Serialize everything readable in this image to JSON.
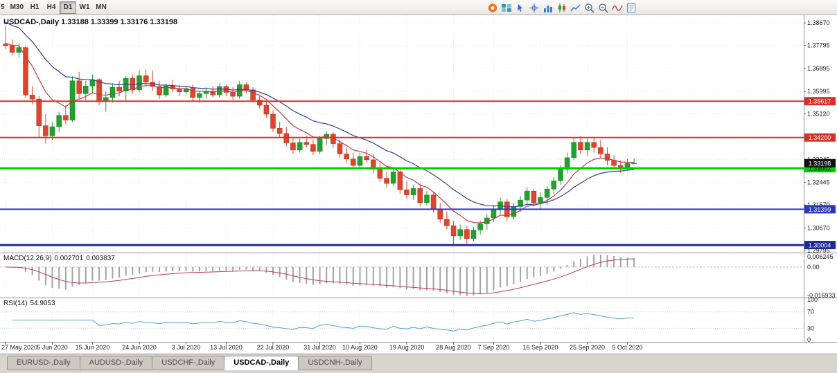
{
  "toolbar": {
    "timeframes": [
      {
        "label": "5",
        "active": false
      },
      {
        "label": "M30",
        "active": false
      },
      {
        "label": "H1",
        "active": false
      },
      {
        "label": "H4",
        "active": false
      },
      {
        "label": "D1",
        "active": true
      },
      {
        "label": "W1",
        "active": false
      },
      {
        "label": "MN",
        "active": false
      }
    ],
    "icons": [
      "app-logo-icon",
      "tile-windows-icon",
      "cursor-icon",
      "crosshair-icon",
      "bar-chart-icon",
      "candlestick-chart-icon",
      "line-chart-icon",
      "zoom-in-icon",
      "zoom-out-icon",
      "indicators-icon",
      "templates-icon"
    ]
  },
  "chart": {
    "title": "USDCAD-,Daily",
    "ohlc": {
      "open": "1.33188",
      "high": "1.33399",
      "low": "1.33176",
      "close": "1.33198"
    }
  },
  "chart_data": {
    "type": "candlestick",
    "symbol": "USDCAD",
    "timeframe": "Daily",
    "ylim": [
      1.2971,
      1.3897
    ],
    "y_axis_labels": [
      "1.38670",
      "1.37795",
      "1.36895",
      "1.35995",
      "1.35120",
      "1.34220",
      "1.33345",
      "1.32445",
      "1.31570",
      "1.30670",
      "1.29795"
    ],
    "x_labels": [
      {
        "index": 0,
        "label": "27 May 2020"
      },
      {
        "index": 7,
        "label": "5 Jun 2020"
      },
      {
        "index": 13,
        "label": "15 Jun 2020"
      },
      {
        "index": 20,
        "label": "24 Jun 2020"
      },
      {
        "index": 27,
        "label": "3 Jul 2020"
      },
      {
        "index": 33,
        "label": "13 Jul 2020"
      },
      {
        "index": 40,
        "label": "22 Jul 2020"
      },
      {
        "index": 47,
        "label": "31 Jul 2020"
      },
      {
        "index": 53,
        "label": "10 Aug 2020"
      },
      {
        "index": 60,
        "label": "19 Aug 2020"
      },
      {
        "index": 67,
        "label": "28 Aug 2020"
      },
      {
        "index": 73,
        "label": "7 Sep 2020"
      },
      {
        "index": 80,
        "label": "16 Sep 2020"
      },
      {
        "index": 87,
        "label": "25 Sep 2020"
      },
      {
        "index": 93,
        "label": "5 Oct 2020"
      }
    ],
    "candles": [
      [
        1.3785,
        1.3857,
        1.3765,
        1.3778
      ],
      [
        1.3778,
        1.3802,
        1.3741,
        1.3752
      ],
      [
        1.3752,
        1.3786,
        1.3731,
        1.3771
      ],
      [
        1.3771,
        1.3776,
        1.3574,
        1.3586
      ],
      [
        1.3586,
        1.3621,
        1.3549,
        1.357
      ],
      [
        1.357,
        1.3581,
        1.3421,
        1.3466
      ],
      [
        1.3466,
        1.3511,
        1.3396,
        1.3426
      ],
      [
        1.3426,
        1.3481,
        1.3411,
        1.3462
      ],
      [
        1.3462,
        1.3521,
        1.3441,
        1.3506
      ],
      [
        1.3506,
        1.3546,
        1.3471,
        1.3488
      ],
      [
        1.3488,
        1.3659,
        1.3481,
        1.3641
      ],
      [
        1.3641,
        1.3676,
        1.3571,
        1.3591
      ],
      [
        1.3591,
        1.3641,
        1.3561,
        1.3621
      ],
      [
        1.3621,
        1.3666,
        1.3591,
        1.3646
      ],
      [
        1.3646,
        1.3651,
        1.3546,
        1.3561
      ],
      [
        1.3561,
        1.3601,
        1.3521,
        1.3576
      ],
      [
        1.3576,
        1.3631,
        1.3556,
        1.3616
      ],
      [
        1.3616,
        1.3641,
        1.3581,
        1.3601
      ],
      [
        1.3601,
        1.3661,
        1.3561,
        1.3651
      ],
      [
        1.3651,
        1.3666,
        1.3591,
        1.3606
      ],
      [
        1.3606,
        1.3681,
        1.3596,
        1.3661
      ],
      [
        1.3661,
        1.3686,
        1.3621,
        1.3636
      ],
      [
        1.3636,
        1.3681,
        1.3601,
        1.3619
      ],
      [
        1.3619,
        1.3641,
        1.3571,
        1.3586
      ],
      [
        1.3586,
        1.3631,
        1.3576,
        1.3621
      ],
      [
        1.3621,
        1.3646,
        1.3596,
        1.3609
      ],
      [
        1.3609,
        1.3626,
        1.3581,
        1.3598
      ],
      [
        1.3598,
        1.3621,
        1.3586,
        1.3611
      ],
      [
        1.3611,
        1.3626,
        1.3561,
        1.3576
      ],
      [
        1.3576,
        1.3601,
        1.3556,
        1.3591
      ],
      [
        1.3591,
        1.3616,
        1.3571,
        1.3601
      ],
      [
        1.3601,
        1.3621,
        1.3576,
        1.3586
      ],
      [
        1.3586,
        1.3631,
        1.3576,
        1.3619
      ],
      [
        1.3619,
        1.3626,
        1.3581,
        1.3596
      ],
      [
        1.3596,
        1.3616,
        1.3566,
        1.3581
      ],
      [
        1.3581,
        1.3641,
        1.3571,
        1.3626
      ],
      [
        1.3626,
        1.3636,
        1.3591,
        1.3606
      ],
      [
        1.3606,
        1.3616,
        1.3556,
        1.3566
      ],
      [
        1.3566,
        1.3581,
        1.3531,
        1.3546
      ],
      [
        1.3546,
        1.3561,
        1.3496,
        1.3511
      ],
      [
        1.3511,
        1.3526,
        1.3441,
        1.3456
      ],
      [
        1.3456,
        1.3481,
        1.3421,
        1.3436
      ],
      [
        1.3436,
        1.3461,
        1.3386,
        1.3399
      ],
      [
        1.3399,
        1.3421,
        1.3356,
        1.3371
      ],
      [
        1.3371,
        1.3416,
        1.3361,
        1.3401
      ],
      [
        1.3401,
        1.3426,
        1.3381,
        1.3393
      ],
      [
        1.3393,
        1.3411,
        1.3351,
        1.3366
      ],
      [
        1.3366,
        1.3426,
        1.3356,
        1.3416
      ],
      [
        1.3416,
        1.3446,
        1.3391,
        1.3433
      ],
      [
        1.3433,
        1.3441,
        1.3381,
        1.3396
      ],
      [
        1.3396,
        1.3411,
        1.3341,
        1.3356
      ],
      [
        1.3356,
        1.3381,
        1.3321,
        1.3336
      ],
      [
        1.3336,
        1.3361,
        1.3296,
        1.3311
      ],
      [
        1.3311,
        1.3361,
        1.3301,
        1.3346
      ],
      [
        1.3346,
        1.3371,
        1.3321,
        1.3333
      ],
      [
        1.3333,
        1.3356,
        1.3281,
        1.3296
      ],
      [
        1.3296,
        1.3321,
        1.3246,
        1.3261
      ],
      [
        1.3261,
        1.3286,
        1.3226,
        1.3241
      ],
      [
        1.3241,
        1.3301,
        1.3231,
        1.3286
      ],
      [
        1.3286,
        1.3296,
        1.3201,
        1.3216
      ],
      [
        1.3216,
        1.3251,
        1.3181,
        1.3196
      ],
      [
        1.3196,
        1.3236,
        1.3176,
        1.3221
      ],
      [
        1.3221,
        1.3241,
        1.3151,
        1.3166
      ],
      [
        1.3166,
        1.3211,
        1.3156,
        1.3196
      ],
      [
        1.3196,
        1.3206,
        1.3126,
        1.3141
      ],
      [
        1.3141,
        1.3166,
        1.3086,
        1.3101
      ],
      [
        1.3101,
        1.3131,
        1.3061,
        1.3076
      ],
      [
        1.3076,
        1.3096,
        1.2996,
        1.3036
      ],
      [
        1.3036,
        1.3081,
        1.3021,
        1.3061
      ],
      [
        1.3061,
        1.3076,
        1.3006,
        1.3026
      ],
      [
        1.3026,
        1.3071,
        1.3016,
        1.3059
      ],
      [
        1.3059,
        1.3096,
        1.3041,
        1.3083
      ],
      [
        1.3083,
        1.3121,
        1.3061,
        1.3106
      ],
      [
        1.3106,
        1.3156,
        1.3091,
        1.3141
      ],
      [
        1.3141,
        1.3186,
        1.3121,
        1.3169
      ],
      [
        1.3169,
        1.3181,
        1.3096,
        1.3111
      ],
      [
        1.3111,
        1.3166,
        1.3101,
        1.3151
      ],
      [
        1.3151,
        1.3191,
        1.3131,
        1.3176
      ],
      [
        1.3176,
        1.3226,
        1.3161,
        1.3211
      ],
      [
        1.3211,
        1.3221,
        1.3151,
        1.3166
      ],
      [
        1.3166,
        1.3206,
        1.3141,
        1.3186
      ],
      [
        1.3186,
        1.3231,
        1.3156,
        1.3219
      ],
      [
        1.3219,
        1.3266,
        1.3201,
        1.3251
      ],
      [
        1.3251,
        1.3311,
        1.3236,
        1.3296
      ],
      [
        1.3296,
        1.3361,
        1.3281,
        1.3341
      ],
      [
        1.3341,
        1.3421,
        1.3331,
        1.3401
      ],
      [
        1.3401,
        1.3426,
        1.3356,
        1.3371
      ],
      [
        1.3371,
        1.3416,
        1.3346,
        1.3401
      ],
      [
        1.3401,
        1.3421,
        1.3361,
        1.3381
      ],
      [
        1.3381,
        1.3411,
        1.3341,
        1.3356
      ],
      [
        1.3356,
        1.3381,
        1.3311,
        1.3331
      ],
      [
        1.3331,
        1.3351,
        1.3296,
        1.3311
      ],
      [
        1.3311,
        1.3331,
        1.3281,
        1.3299
      ],
      [
        1.3299,
        1.3336,
        1.3291,
        1.3319
      ],
      [
        1.33188,
        1.33399,
        1.33176,
        1.33198
      ]
    ],
    "moving_averages": [
      {
        "name": "ma-fast",
        "period": 8,
        "seed": 1.379,
        "color": "#c6384d"
      },
      {
        "name": "ma-slow",
        "period": 18,
        "seed": 1.388,
        "color": "#2b3f9e"
      }
    ],
    "hlines": [
      {
        "price": 1.35617,
        "label": "1.35617",
        "color": "#d93025",
        "text_color": "#ffffff",
        "width": 2
      },
      {
        "price": 1.342,
        "label": "1.34200",
        "color": "#d93025",
        "text_color": "#ffffff",
        "width": 2
      },
      {
        "price": 1.33002,
        "label": "1.33002",
        "color": "#00cc00",
        "text_color": "#000000",
        "width": 3
      },
      {
        "price": 1.31399,
        "label": "1.31399",
        "color": "#2a35c8",
        "text_color": "#ffffff",
        "width": 2
      },
      {
        "price": 1.30004,
        "label": "1.30004",
        "color": "#1b2a99",
        "text_color": "#ffffff",
        "width": 3
      }
    ],
    "current_price": {
      "value": 1.33198,
      "label": "1.33198"
    },
    "indicators": {
      "macd": {
        "title": "MACD(12,26,9)",
        "value_main": "0.002701",
        "value_signal": "0.003837",
        "fast": 12,
        "slow": 26,
        "signal": 9,
        "axis_labels": [
          "0.006245",
          "0.00",
          "-0.016933"
        ]
      },
      "rsi": {
        "title": "RSI(14)",
        "value": "54.9053",
        "period": 14,
        "levels": [
          70,
          30
        ],
        "axis_labels": [
          "100",
          "70",
          "30",
          "0"
        ]
      }
    }
  },
  "tabs": {
    "items": [
      {
        "label": "EURUSD-,Daily",
        "active": false
      },
      {
        "label": "AUDUSD-,Daily",
        "active": false
      },
      {
        "label": "USDCHF-,Daily",
        "active": false
      },
      {
        "label": "USDCAD-,Daily",
        "active": true
      },
      {
        "label": "USDCNH-,Daily",
        "active": false
      }
    ]
  }
}
